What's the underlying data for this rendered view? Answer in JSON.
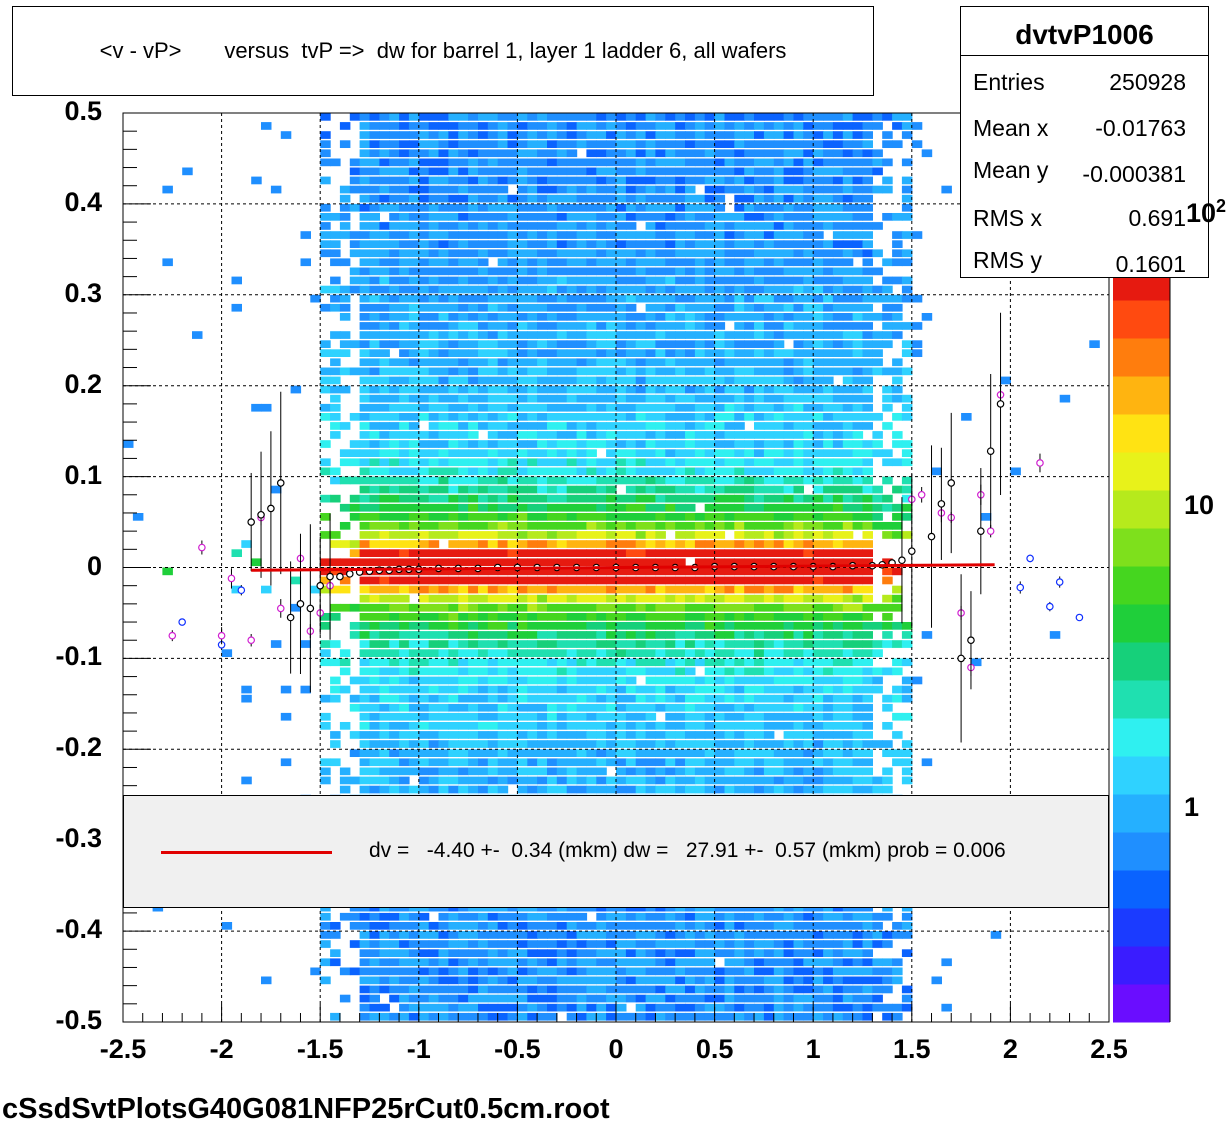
{
  "title": "<v - vP>       versus  tvP =>  dw for barrel 1, layer 1 ladder 6, all wafers",
  "filename": "cSsdSvtPlotsG40G081NFP25rCut0.5cm.root",
  "stats": {
    "name": "dvtvP1006",
    "rows": [
      {
        "key": "Entries",
        "value": "250928"
      },
      {
        "key": "Mean x",
        "value": "-0.01763"
      },
      {
        "key": "Mean y",
        "value": "-0.000381"
      },
      {
        "key": "RMS x",
        "value": "0.691"
      },
      {
        "key": "RMS y",
        "value": "0.1601"
      }
    ]
  },
  "legend": {
    "text": "dv =   -4.40 +-  0.34 (mkm) dw =   27.91 +-  0.57 (mkm) prob = 0.006",
    "line_color": "#e00000"
  },
  "chart_data": {
    "type": "heatmap",
    "xlim": [
      -2.5,
      2.5
    ],
    "ylim": [
      -0.5,
      0.5
    ],
    "x_ticks": [
      "-2.5",
      "-2",
      "-1.5",
      "-1",
      "-0.5",
      "0",
      "0.5",
      "1",
      "1.5",
      "2",
      "2.5"
    ],
    "y_ticks": [
      "0.5",
      "0.4",
      "0.3",
      "0.2",
      "0.1",
      "0",
      "-0.1",
      "-0.2",
      "-0.3",
      "-0.4",
      "-0.5"
    ],
    "z_scale": "log",
    "z_ticks": [
      "1",
      "10",
      "10^2"
    ],
    "grid": true,
    "fit_line": {
      "color": "#e00000",
      "x": [
        -1.85,
        1.92
      ],
      "y": [
        -0.003,
        0.003
      ]
    },
    "profile_black": {
      "x": [
        -1.85,
        -1.8,
        -1.75,
        -1.7,
        -1.65,
        -1.6,
        -1.55,
        -1.5,
        -1.45,
        -1.4,
        -1.35,
        -1.3,
        -1.25,
        -1.2,
        -1.15,
        -1.1,
        -1.05,
        -1.0,
        -0.9,
        -0.8,
        -0.7,
        -0.6,
        -0.5,
        -0.4,
        -0.3,
        -0.2,
        -0.1,
        0.0,
        0.1,
        0.2,
        0.3,
        0.4,
        0.5,
        0.6,
        0.7,
        0.8,
        0.9,
        1.0,
        1.1,
        1.2,
        1.3,
        1.35,
        1.4,
        1.45,
        1.5,
        1.6,
        1.65,
        1.7,
        1.75,
        1.8,
        1.85,
        1.9,
        1.95
      ],
      "y": [
        0.05,
        0.058,
        0.065,
        0.093,
        -0.055,
        -0.04,
        -0.045,
        -0.02,
        -0.01,
        -0.01,
        -0.007,
        -0.005,
        -0.004,
        -0.003,
        -0.003,
        -0.002,
        -0.002,
        -0.002,
        -0.001,
        -0.001,
        -0.001,
        0.0,
        0.0,
        0.0,
        0.0,
        0.0,
        0.0,
        0.0,
        0.0,
        0.0,
        0.0,
        0.0,
        0.001,
        0.001,
        0.001,
        0.001,
        0.001,
        0.001,
        0.001,
        0.002,
        0.002,
        0.003,
        0.005,
        0.008,
        0.018,
        0.034,
        0.07,
        0.093,
        -0.1,
        -0.08,
        0.04,
        0.128,
        0.18
      ]
    },
    "profile_magenta": {
      "x": [
        -2.25,
        -2.1,
        -2.0,
        -1.95,
        -1.85,
        -1.8,
        -1.7,
        -1.6,
        -1.55,
        -1.5,
        -1.45,
        1.5,
        1.55,
        1.65,
        1.7,
        1.75,
        1.8,
        1.85,
        1.9,
        1.95,
        2.15
      ],
      "y": [
        -0.075,
        0.022,
        -0.075,
        -0.012,
        -0.08,
        0.055,
        -0.045,
        0.01,
        -0.07,
        -0.05,
        -0.02,
        0.075,
        0.08,
        0.06,
        0.055,
        -0.05,
        -0.11,
        0.08,
        0.04,
        0.19,
        0.115
      ]
    },
    "profile_blue": {
      "x": [
        -2.2,
        -2.0,
        -1.9,
        2.05,
        2.1,
        2.2,
        2.25,
        2.35
      ],
      "y": [
        -0.06,
        -0.085,
        -0.025,
        -0.022,
        0.01,
        -0.043,
        -0.016,
        -0.055
      ]
    }
  }
}
